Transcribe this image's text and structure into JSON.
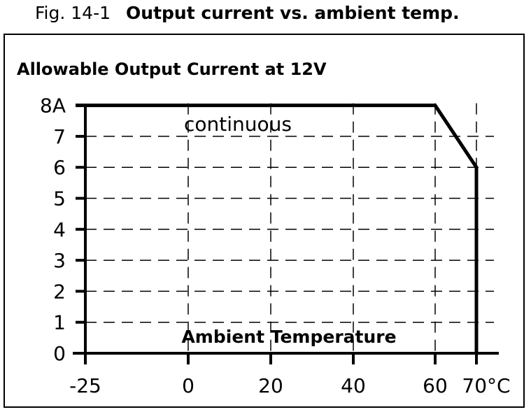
{
  "figure": {
    "number": "Fig. 14-1",
    "title": "Output current vs. ambient temp."
  },
  "chart_data": {
    "type": "line",
    "title": "Allowable Output Current at 12V",
    "xlabel": "Ambient Temperature",
    "ylabel": "",
    "x_ticks": [
      -25,
      0,
      20,
      40,
      60,
      70
    ],
    "x_tick_labels": [
      "-25",
      "0",
      "20",
      "40",
      "60",
      "70°C"
    ],
    "y_ticks": [
      0,
      1,
      2,
      3,
      4,
      5,
      6,
      7,
      8
    ],
    "y_tick_labels": [
      "0",
      "1",
      "2",
      "3",
      "4",
      "5",
      "6",
      "7",
      "8A"
    ],
    "xlim": [
      -25,
      70
    ],
    "ylim": [
      0,
      8
    ],
    "grid": true,
    "annotation": "continuous",
    "series": [
      {
        "x": [
          -25,
          60,
          70,
          70
        ],
        "y": [
          8,
          8,
          6,
          0
        ]
      }
    ]
  }
}
